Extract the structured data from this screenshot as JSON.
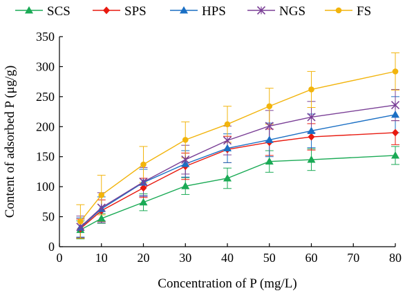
{
  "chart_data": {
    "type": "line",
    "title": "",
    "xlabel": "Concentration of P (mg/L)",
    "ylabel": "Content of adsorbed P (μg/g)",
    "xlim": [
      0,
      80
    ],
    "ylim": [
      0,
      350
    ],
    "xticks": [
      0,
      10,
      20,
      30,
      40,
      50,
      60,
      70,
      80
    ],
    "yticks": [
      0,
      50,
      100,
      150,
      200,
      250,
      300,
      350
    ],
    "grid": false,
    "legend_position": "top",
    "x": [
      5,
      10,
      20,
      30,
      40,
      50,
      60,
      80
    ],
    "series": [
      {
        "name": "SCS",
        "color": "#1aaa55",
        "marker": "triangle",
        "values": [
          28,
          47,
          74,
          101,
          114,
          142,
          145,
          152
        ],
        "errors": [
          15,
          8,
          14,
          14,
          17,
          18,
          18,
          15
        ]
      },
      {
        "name": "SPS",
        "color": "#e8190f",
        "marker": "diamond",
        "values": [
          30,
          60,
          98,
          134,
          162,
          174,
          183,
          190
        ],
        "errors": [
          16,
          18,
          16,
          22,
          22,
          22,
          22,
          20
        ]
      },
      {
        "name": "HPS",
        "color": "#1a6fc4",
        "marker": "triangle",
        "values": [
          32,
          63,
          107,
          138,
          164,
          178,
          193,
          220
        ],
        "errors": [
          16,
          20,
          22,
          22,
          24,
          28,
          28,
          30
        ]
      },
      {
        "name": "NGS",
        "color": "#7a3f96",
        "marker": "x",
        "values": [
          33,
          65,
          108,
          145,
          177,
          201,
          216,
          236
        ],
        "errors": [
          18,
          25,
          24,
          24,
          24,
          26,
          26,
          26
        ]
      },
      {
        "name": "FS",
        "color": "#f2b40c",
        "marker": "circle",
        "values": [
          42,
          86,
          137,
          178,
          204,
          234,
          262,
          292
        ],
        "errors": [
          28,
          33,
          30,
          30,
          30,
          30,
          30,
          31
        ]
      }
    ]
  }
}
